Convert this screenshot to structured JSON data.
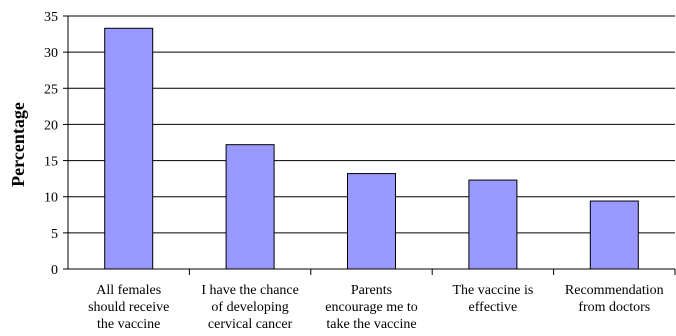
{
  "chart_data": {
    "type": "bar",
    "title": "",
    "xlabel": "",
    "ylabel": "Percentage",
    "ylim": [
      0,
      35
    ],
    "yticks": [
      0,
      5,
      10,
      15,
      20,
      25,
      30,
      35
    ],
    "grid": true,
    "legend": "none",
    "bar_color": "#9999ff",
    "categories": [
      [
        "All females",
        "should receive",
        "the vaccine"
      ],
      [
        "I have the chance",
        "of developing",
        "cervical cancer"
      ],
      [
        "Parents",
        "encourage me to",
        "take the vaccine"
      ],
      [
        "The vaccine is",
        "effective"
      ],
      [
        "Recommendation",
        "from doctors"
      ]
    ],
    "values": [
      33.3,
      17.2,
      13.2,
      12.3,
      9.4
    ]
  }
}
